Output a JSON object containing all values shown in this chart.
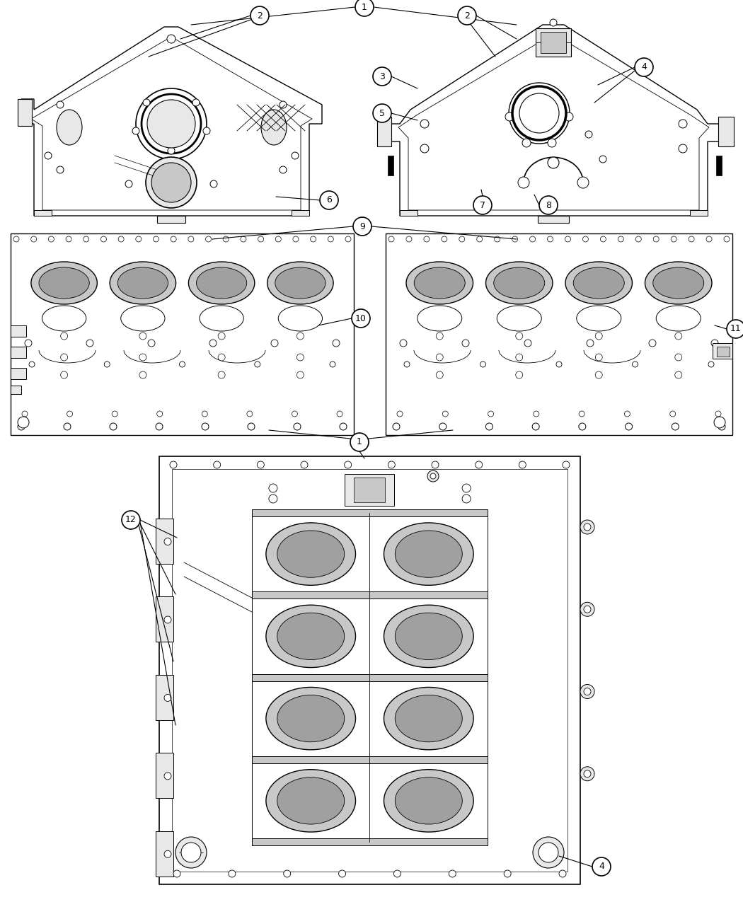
{
  "bg": "#ffffff",
  "fig_w": 10.5,
  "fig_h": 12.75,
  "dpi": 100,
  "gray_fill": "#e8e8e8",
  "mid_gray": "#c8c8c8",
  "dark_gray": "#a0a0a0",
  "black": "#000000",
  "white": "#ffffff",
  "lw_main": 0.9,
  "lw_thin": 0.5,
  "lw_thick": 1.5,
  "callout_r": 13,
  "callout_fs": 9
}
